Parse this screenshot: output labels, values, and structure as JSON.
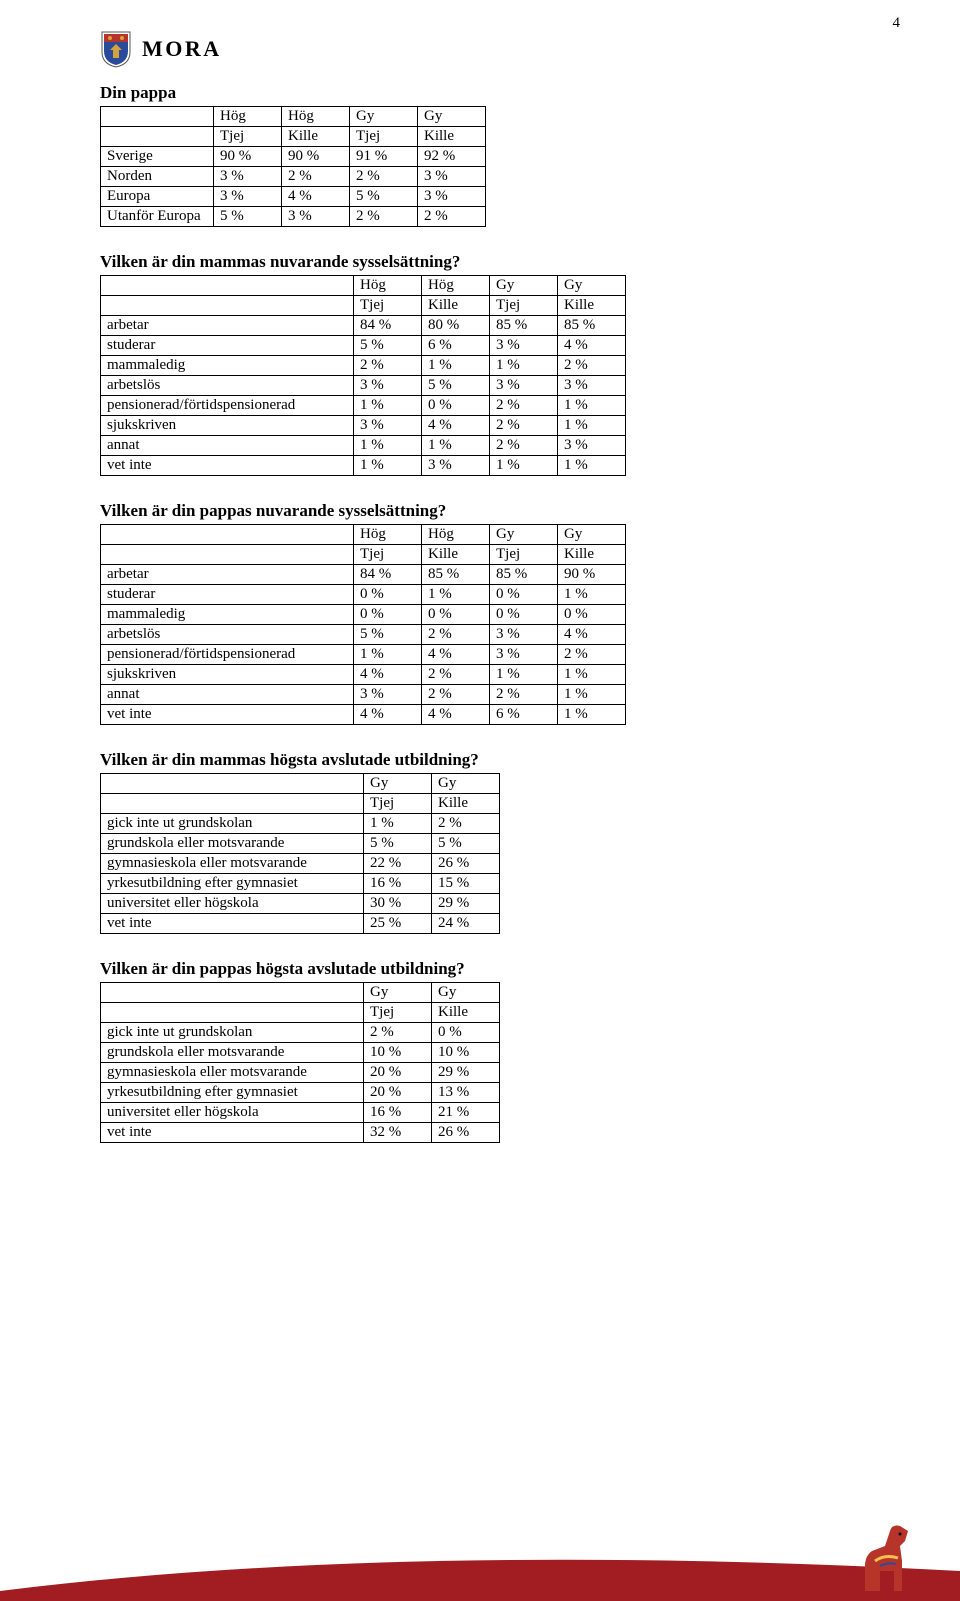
{
  "page_number": "4",
  "brand": {
    "name": "MORA"
  },
  "colors": {
    "text": "#000000",
    "background": "#ffffff",
    "border": "#000000",
    "swoosh": "#a11d21",
    "horse_fill": "#b7342b",
    "horse_accent": "#f2c14e",
    "crest_red": "#b7342b",
    "crest_gold": "#d4a43c",
    "crest_blue": "#2a4b9b"
  },
  "tables": {
    "t1": {
      "title": "Din pappa",
      "header1": [
        "",
        "Hög",
        "Hög",
        "Gy",
        "Gy"
      ],
      "header2": [
        "",
        "Tjej",
        "Kille",
        "Tjej",
        "Kille"
      ],
      "rows": [
        [
          "Sverige",
          "90 %",
          "90 %",
          "91 %",
          "92 %"
        ],
        [
          "Norden",
          "3 %",
          "2 %",
          "2 %",
          "3 %"
        ],
        [
          "Europa",
          "3 %",
          "4 %",
          "5 %",
          "3 %"
        ],
        [
          "Utanför Europa",
          "5 %",
          "3 %",
          "2 %",
          "2 %"
        ]
      ]
    },
    "t2": {
      "title": "Vilken är din mammas nuvarande sysselsättning?",
      "header1": [
        "",
        "Hög",
        "Hög",
        "Gy",
        "Gy"
      ],
      "header2": [
        "",
        "Tjej",
        "Kille",
        "Tjej",
        "Kille"
      ],
      "rows": [
        [
          "arbetar",
          "84 %",
          "80 %",
          "85 %",
          "85 %"
        ],
        [
          "studerar",
          "5 %",
          "6 %",
          "3 %",
          "4 %"
        ],
        [
          "mammaledig",
          "2 %",
          "1 %",
          "1 %",
          "2 %"
        ],
        [
          "arbetslös",
          "3 %",
          "5 %",
          "3 %",
          "3 %"
        ],
        [
          "pensionerad/förtidspensionerad",
          "1 %",
          "0 %",
          "2 %",
          "1 %"
        ],
        [
          "sjukskriven",
          "3 %",
          "4 %",
          "2 %",
          "1 %"
        ],
        [
          "annat",
          "1 %",
          "1 %",
          "2 %",
          "3 %"
        ],
        [
          "vet inte",
          "1 %",
          "3 %",
          "1 %",
          "1 %"
        ]
      ]
    },
    "t3": {
      "title": "Vilken är din pappas nuvarande sysselsättning?",
      "header1": [
        "",
        "Hög",
        "Hög",
        "Gy",
        "Gy"
      ],
      "header2": [
        "",
        "Tjej",
        "Kille",
        "Tjej",
        "Kille"
      ],
      "rows": [
        [
          "arbetar",
          "84 %",
          "85 %",
          "85 %",
          "90 %"
        ],
        [
          "studerar",
          "0 %",
          "1 %",
          "0 %",
          "1 %"
        ],
        [
          "mammaledig",
          "0 %",
          "0 %",
          "0 %",
          "0 %"
        ],
        [
          "arbetslös",
          "5 %",
          "2 %",
          "3 %",
          "4 %"
        ],
        [
          "pensionerad/förtidspensionerad",
          "1 %",
          "4 %",
          "3 %",
          "2 %"
        ],
        [
          "sjukskriven",
          "4 %",
          "2 %",
          "1 %",
          "1 %"
        ],
        [
          "annat",
          "3 %",
          "2 %",
          "2 %",
          "1 %"
        ],
        [
          "vet inte",
          "4 %",
          "4 %",
          "6 %",
          "1 %"
        ]
      ]
    },
    "t4": {
      "title": "Vilken är din mammas högsta avslutade utbildning?",
      "header1": [
        "",
        "Gy",
        "Gy"
      ],
      "header2": [
        "",
        "Tjej",
        "Kille"
      ],
      "rows": [
        [
          "gick inte ut grundskolan",
          "1 %",
          "2 %"
        ],
        [
          "grundskola eller motsvarande",
          "5 %",
          "5 %"
        ],
        [
          "gymnasieskola eller motsvarande",
          "22 %",
          "26 %"
        ],
        [
          "yrkesutbildning efter gymnasiet",
          "16 %",
          "15 %"
        ],
        [
          "universitet eller högskola",
          "30 %",
          "29 %"
        ],
        [
          "vet inte",
          "25 %",
          "24 %"
        ]
      ]
    },
    "t5": {
      "title": "Vilken är din pappas högsta avslutade utbildning?",
      "header1": [
        "",
        "Gy",
        "Gy"
      ],
      "header2": [
        "",
        "Tjej",
        "Kille"
      ],
      "rows": [
        [
          "gick inte ut grundskolan",
          "2 %",
          "0 %"
        ],
        [
          "grundskola eller motsvarande",
          "10 %",
          "10 %"
        ],
        [
          "gymnasieskola eller motsvarande",
          "20 %",
          "29 %"
        ],
        [
          "yrkesutbildning efter gymnasiet",
          "20 %",
          "13 %"
        ],
        [
          "universitet eller högskola",
          "16 %",
          "21 %"
        ],
        [
          "vet inte",
          "32 %",
          "26 %"
        ]
      ]
    }
  }
}
